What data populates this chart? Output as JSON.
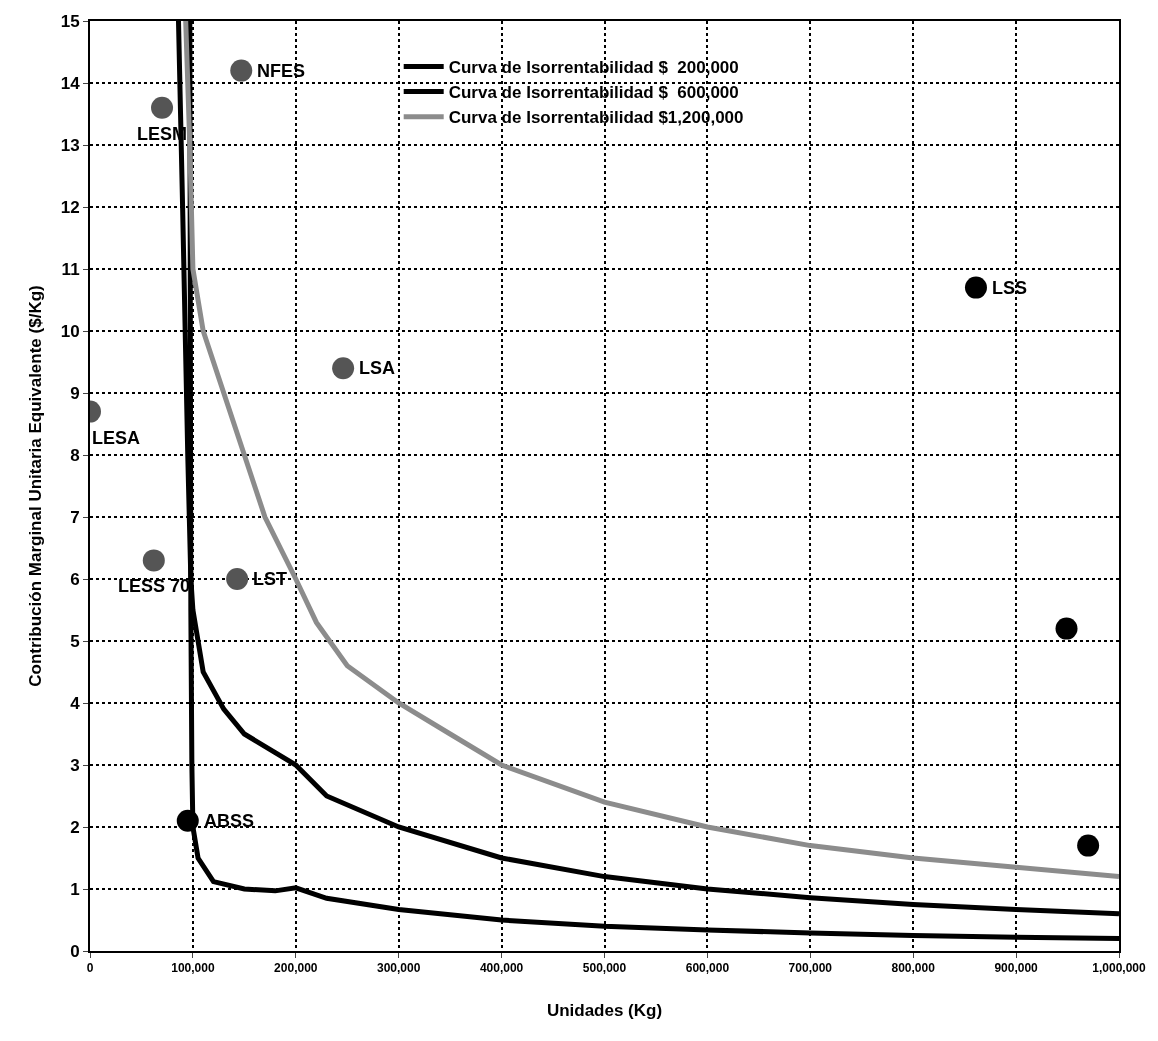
{
  "chart_data": {
    "type": "line",
    "xlabel": "Unidades (Kg)",
    "ylabel": "Contribución Marginal Unitaria Equivalente ($/Kg)",
    "xlim": [
      0,
      1000000
    ],
    "ylim": [
      0,
      15
    ],
    "xticks": [
      0,
      {
        "value": 100000,
        "label": "100,000"
      },
      {
        "value": 200000,
        "label": "200,000"
      },
      {
        "value": 300000,
        "label": "300,000"
      },
      {
        "value": 400000,
        "label": "400,000"
      },
      {
        "value": 500000,
        "label": "500,000"
      },
      {
        "value": 600000,
        "label": "600,000"
      },
      {
        "value": 700000,
        "label": "700,000"
      },
      {
        "value": 800000,
        "label": "800,000"
      },
      {
        "value": 900000,
        "label": "900,000"
      },
      {
        "value": 1000000,
        "label": "1,000,000"
      }
    ],
    "yticks": [
      0,
      1,
      2,
      3,
      4,
      5,
      6,
      7,
      8,
      9,
      10,
      11,
      12,
      13,
      14,
      15
    ],
    "grid": true,
    "legend": "top",
    "line_style": "solid",
    "series": [
      {
        "name": "Curva de Isorrentabilidad $  200,000",
        "color": "#000000",
        "x": [
          97000,
          98000,
          99000,
          100000,
          105000,
          120000,
          150000,
          180000,
          200000,
          230000,
          300000,
          400000,
          500000,
          600000,
          700000,
          800000,
          900000,
          1000000
        ],
        "values": [
          15,
          5.5,
          3,
          2,
          1.5,
          1.12,
          1.0,
          0.97,
          1.02,
          0.85,
          0.67,
          0.5,
          0.4,
          0.34,
          0.29,
          0.25,
          0.22,
          0.2
        ]
      },
      {
        "name": "Curva de Isorrentabilidad $  600,000",
        "color": "#000000",
        "x": [
          86000,
          90000,
          95000,
          98000,
          100000,
          110000,
          130000,
          150000,
          180000,
          200000,
          230000,
          300000,
          400000,
          500000,
          600000,
          700000,
          800000,
          900000,
          1000000
        ],
        "values": [
          15,
          12,
          8,
          6,
          5.5,
          4.5,
          3.9,
          3.5,
          3.2,
          3.0,
          2.5,
          2.0,
          1.5,
          1.2,
          1.0,
          0.86,
          0.75,
          0.67,
          0.6
        ]
      },
      {
        "name": "Curva de Isorrentabilidad $1,200,000",
        "color": "#8c8c8c",
        "x": [
          93000,
          97000,
          100000,
          110000,
          130000,
          150000,
          170000,
          200000,
          220000,
          250000,
          300000,
          350000,
          400000,
          500000,
          600000,
          700000,
          800000,
          900000,
          1000000
        ],
        "values": [
          15,
          13,
          11,
          10,
          9,
          8,
          7,
          6,
          5.3,
          4.6,
          4.0,
          3.5,
          3.0,
          2.4,
          2.0,
          1.7,
          1.5,
          1.35,
          1.2
        ]
      },
      {
        "type": "scatter",
        "marker": "circle",
        "x": [
          147000,
          70000,
          246000,
          0,
          62000,
          143000,
          95000,
          861000,
          949000,
          970000
        ],
        "values": [
          14.2,
          13.6,
          9.4,
          8.7,
          6.3,
          6.0,
          2.1,
          10.7,
          5.2,
          1.7
        ],
        "colors": [
          "#555555",
          "#555555",
          "#555555",
          "#555555",
          "#555555",
          "#555555",
          "#000000",
          "#000000",
          "#000000",
          "#000000"
        ]
      }
    ],
    "annotations": [
      {
        "text": "NFES",
        "x": 147000,
        "y": 14.2
      },
      {
        "text": "LESM",
        "x": 70000,
        "y": 13.6
      },
      {
        "text": "LSA",
        "x": 246000,
        "y": 9.4
      },
      {
        "text": "LESA",
        "x": 0,
        "y": 8.7
      },
      {
        "text": "LESS 70",
        "x": 62000,
        "y": 6.3
      },
      {
        "text": "LST",
        "x": 143000,
        "y": 6.0
      },
      {
        "text": "ABSS",
        "x": 95000,
        "y": 2.1
      },
      {
        "text": "LSS",
        "x": 861000,
        "y": 10.7
      }
    ]
  }
}
